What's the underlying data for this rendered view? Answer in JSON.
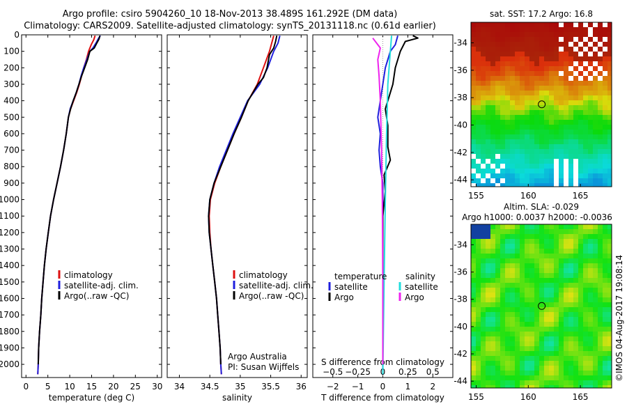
{
  "header": {
    "title_line1": "Argo profile: csiro 5904260_10 18-Nov-2013 38.489S 161.292E (DM data)",
    "title_line2": "Climatology: CARS2009. Satellite-adjusted climatology: synTS_20131118.nc (0.61d earlier)"
  },
  "footer": {
    "credit_line1": "Argo Australia",
    "credit_line2": "PI: Susan Wijffels",
    "stamp": "©IMOS 04-Aug-2017 19:08:14"
  },
  "colors": {
    "climatology": "#dd1010",
    "satellite": "#1f1fdd",
    "argo": "#000000",
    "satellite_salinity": "#22dddd",
    "argo_salinity": "#ee22ee"
  },
  "chart_data": [
    {
      "id": "temperature",
      "type": "line",
      "xlabel": "temperature (deg C)",
      "ylabel": "",
      "xlim": [
        -1,
        31
      ],
      "ylim": [
        2080,
        0
      ],
      "xticks": [
        0,
        5,
        10,
        15,
        20,
        25,
        30
      ],
      "yticks": [
        0,
        100,
        200,
        300,
        400,
        500,
        600,
        700,
        800,
        900,
        1000,
        1100,
        1200,
        1300,
        1400,
        1500,
        1600,
        1700,
        1800,
        1900,
        2000
      ],
      "legend": {
        "position": "bottom-right",
        "entries": [
          "climatology",
          "satellite-adj. clim.",
          "Argo(..raw -QC)"
        ]
      },
      "series": [
        {
          "name": "climatology",
          "color": "#dd1010",
          "points": [
            [
              15.8,
              5
            ],
            [
              15.5,
              30
            ],
            [
              14.9,
              60
            ],
            [
              14.3,
              100
            ],
            [
              13.8,
              150
            ],
            [
              13.2,
              200
            ],
            [
              12.7,
              250
            ],
            [
              12.2,
              300
            ],
            [
              11.6,
              350
            ],
            [
              10.9,
              400
            ],
            [
              10.2,
              450
            ],
            [
              9.7,
              500
            ],
            [
              9.2,
              600
            ],
            [
              8.6,
              700
            ],
            [
              7.9,
              800
            ],
            [
              7.1,
              900
            ],
            [
              6.3,
              1000
            ],
            [
              5.6,
              1100
            ],
            [
              5.1,
              1200
            ],
            [
              4.6,
              1300
            ],
            [
              4.2,
              1400
            ],
            [
              3.9,
              1500
            ],
            [
              3.6,
              1600
            ],
            [
              3.4,
              1700
            ],
            [
              3.1,
              1800
            ],
            [
              2.9,
              1900
            ],
            [
              2.8,
              2000
            ],
            [
              2.7,
              2060
            ]
          ]
        },
        {
          "name": "satellite-adj. clim.",
          "color": "#1f1fdd",
          "points": [
            [
              17.0,
              5
            ],
            [
              16.6,
              20
            ],
            [
              16.0,
              50
            ],
            [
              15.3,
              80
            ],
            [
              14.6,
              100
            ],
            [
              13.9,
              150
            ],
            [
              13.2,
              200
            ],
            [
              12.6,
              250
            ],
            [
              12.1,
              300
            ],
            [
              11.5,
              350
            ],
            [
              10.8,
              400
            ],
            [
              10.1,
              450
            ],
            [
              9.7,
              500
            ],
            [
              9.2,
              600
            ],
            [
              8.6,
              700
            ],
            [
              7.9,
              800
            ],
            [
              7.1,
              900
            ],
            [
              6.3,
              1000
            ],
            [
              5.6,
              1100
            ],
            [
              5.1,
              1200
            ],
            [
              4.6,
              1300
            ],
            [
              4.2,
              1400
            ],
            [
              3.9,
              1500
            ],
            [
              3.6,
              1600
            ],
            [
              3.4,
              1700
            ],
            [
              3.1,
              1800
            ],
            [
              2.9,
              1900
            ],
            [
              2.8,
              2000
            ],
            [
              2.7,
              2060
            ]
          ]
        },
        {
          "name": "Argo(..raw -QC)",
          "color": "#000000",
          "points": [
            [
              16.9,
              5
            ],
            [
              16.7,
              25
            ],
            [
              16.2,
              50
            ],
            [
              15.6,
              80
            ],
            [
              14.6,
              100
            ],
            [
              14.1,
              150
            ],
            [
              13.4,
              200
            ],
            [
              12.7,
              250
            ],
            [
              12.1,
              300
            ],
            [
              11.5,
              350
            ],
            [
              10.8,
              400
            ],
            [
              10.2,
              450
            ],
            [
              9.7,
              500
            ],
            [
              9.2,
              600
            ],
            [
              8.6,
              700
            ],
            [
              7.9,
              800
            ],
            [
              7.1,
              900
            ],
            [
              6.3,
              1000
            ],
            [
              5.6,
              1100
            ],
            [
              5.1,
              1200
            ],
            [
              4.6,
              1300
            ],
            [
              4.2,
              1400
            ],
            [
              3.9,
              1500
            ],
            [
              3.6,
              1600
            ],
            [
              3.4,
              1700
            ],
            [
              3.1,
              1800
            ],
            [
              2.9,
              1900
            ],
            [
              2.8,
              2000
            ]
          ]
        }
      ]
    },
    {
      "id": "salinity",
      "type": "line",
      "xlabel": "salinity",
      "ylabel": "",
      "xlim": [
        33.8,
        36.1
      ],
      "ylim": [
        2080,
        0
      ],
      "xticks": [
        34,
        34.5,
        35,
        35.5,
        36
      ],
      "xticklabels": [
        "34",
        "34.5",
        "35",
        "35.5",
        "36"
      ],
      "legend": {
        "position": "bottom-right",
        "entries": [
          "climatology",
          "satellite-adj. clim.",
          "Argo(..raw -QC)"
        ]
      },
      "series": [
        {
          "name": "climatology",
          "color": "#dd1010",
          "points": [
            [
              35.55,
              5
            ],
            [
              35.48,
              100
            ],
            [
              35.38,
              200
            ],
            [
              35.28,
              300
            ],
            [
              35.13,
              400
            ],
            [
              35.02,
              500
            ],
            [
              34.9,
              600
            ],
            [
              34.79,
              700
            ],
            [
              34.68,
              800
            ],
            [
              34.58,
              900
            ],
            [
              34.51,
              1000
            ],
            [
              34.49,
              1100
            ],
            [
              34.5,
              1200
            ],
            [
              34.52,
              1300
            ],
            [
              34.55,
              1400
            ],
            [
              34.58,
              1500
            ],
            [
              34.61,
              1600
            ],
            [
              34.63,
              1700
            ],
            [
              34.65,
              1800
            ],
            [
              34.67,
              1900
            ],
            [
              34.68,
              2000
            ],
            [
              34.69,
              2060
            ]
          ]
        },
        {
          "name": "satellite-adj. clim.",
          "color": "#1f1fdd",
          "points": [
            [
              35.65,
              5
            ],
            [
              35.62,
              50
            ],
            [
              35.55,
              100
            ],
            [
              35.45,
              200
            ],
            [
              35.32,
              300
            ],
            [
              35.12,
              400
            ],
            [
              35.0,
              500
            ],
            [
              34.88,
              600
            ],
            [
              34.77,
              700
            ],
            [
              34.66,
              800
            ],
            [
              34.57,
              900
            ],
            [
              34.5,
              1000
            ],
            [
              34.48,
              1100
            ],
            [
              34.49,
              1200
            ],
            [
              34.52,
              1300
            ],
            [
              34.55,
              1400
            ],
            [
              34.58,
              1500
            ],
            [
              34.61,
              1600
            ],
            [
              34.63,
              1700
            ],
            [
              34.65,
              1800
            ],
            [
              34.67,
              1900
            ],
            [
              34.68,
              2000
            ],
            [
              34.69,
              2060
            ]
          ]
        },
        {
          "name": "Argo(..raw -QC)",
          "color": "#000000",
          "points": [
            [
              35.6,
              5
            ],
            [
              35.58,
              40
            ],
            [
              35.55,
              80
            ],
            [
              35.48,
              120
            ],
            [
              35.44,
              200
            ],
            [
              35.38,
              260
            ],
            [
              35.29,
              300
            ],
            [
              35.13,
              400
            ],
            [
              35.02,
              500
            ],
            [
              34.9,
              600
            ],
            [
              34.79,
              700
            ],
            [
              34.68,
              800
            ],
            [
              34.57,
              900
            ],
            [
              34.5,
              1000
            ],
            [
              34.48,
              1100
            ],
            [
              34.49,
              1200
            ],
            [
              34.52,
              1300
            ],
            [
              34.55,
              1400
            ],
            [
              34.58,
              1500
            ],
            [
              34.61,
              1600
            ],
            [
              34.63,
              1700
            ],
            [
              34.65,
              1800
            ],
            [
              34.67,
              1900
            ],
            [
              34.68,
              2000
            ]
          ]
        }
      ]
    },
    {
      "id": "differences",
      "type": "line",
      "xlabel": "T difference from climatology",
      "xlabel_top": "S difference from climatology",
      "xlim": [
        -2.8,
        2.8
      ],
      "ylim": [
        2080,
        0
      ],
      "xticks": [
        -2,
        -1,
        0,
        1,
        2
      ],
      "xticklabels": [
        "−2",
        "−1",
        "0",
        "1",
        "2"
      ],
      "salinity_ticklabels": [
        "−0.5",
        "−0.25",
        "0",
        "0.25",
        "0.5"
      ],
      "legend": {
        "position": "bottom",
        "groups": [
          {
            "heading": "temperature",
            "entries": [
              "satellite",
              "Argo"
            ]
          },
          {
            "heading": "salinity",
            "entries": [
              "satellite",
              "Argo"
            ]
          }
        ]
      },
      "series": [
        {
          "name": "satellite",
          "group": "temperature",
          "color": "#1f1fdd",
          "points": [
            [
              0.6,
              5
            ],
            [
              0.5,
              60
            ],
            [
              0.3,
              100
            ],
            [
              0.1,
              200
            ],
            [
              0.0,
              300
            ],
            [
              -0.1,
              400
            ],
            [
              -0.2,
              500
            ],
            [
              -0.1,
              600
            ],
            [
              -0.15,
              700
            ],
            [
              -0.1,
              800
            ],
            [
              0.0,
              900
            ],
            [
              0.0,
              1000
            ],
            [
              0.0,
              1500
            ],
            [
              0.0,
              2060
            ]
          ]
        },
        {
          "name": "Argo",
          "group": "temperature",
          "color": "#000000",
          "points": [
            [
              1.2,
              5
            ],
            [
              1.4,
              20
            ],
            [
              0.9,
              40
            ],
            [
              0.7,
              100
            ],
            [
              0.6,
              150
            ],
            [
              0.5,
              200
            ],
            [
              0.4,
              300
            ],
            [
              0.1,
              450
            ],
            [
              0.2,
              550
            ],
            [
              0.2,
              680
            ],
            [
              0.3,
              760
            ],
            [
              0.05,
              850
            ],
            [
              0.1,
              950
            ],
            [
              0.0,
              1100
            ],
            [
              0.0,
              1500
            ],
            [
              0.0,
              2000
            ]
          ]
        },
        {
          "name": "satellite",
          "group": "salinity",
          "color": "#22dddd",
          "points": [
            [
              0.35,
              5
            ],
            [
              0.3,
              100
            ],
            [
              0.2,
              300
            ],
            [
              0.15,
              600
            ],
            [
              0.1,
              1000
            ],
            [
              0.05,
              1500
            ],
            [
              0.0,
              2060
            ]
          ]
        },
        {
          "name": "Argo",
          "group": "salinity",
          "color": "#ee22ee",
          "points": [
            [
              -0.4,
              20
            ],
            [
              -0.1,
              80
            ],
            [
              -0.2,
              150
            ],
            [
              -0.15,
              250
            ],
            [
              -0.1,
              400
            ],
            [
              -0.05,
              700
            ],
            [
              -0.02,
              1000
            ],
            [
              0.0,
              1500
            ],
            [
              0.0,
              2000
            ]
          ]
        }
      ]
    },
    {
      "id": "sst-map",
      "type": "heatmap",
      "title": "sat. SST: 17.2 Argo: 16.8",
      "xlim": [
        154.5,
        168
      ],
      "ylim": [
        -44.5,
        -32.5
      ],
      "xticks": [
        155,
        160,
        165
      ],
      "yticks": [
        -34,
        -36,
        -38,
        -40,
        -42,
        -44
      ],
      "marker": {
        "lon": 161.292,
        "lat": -38.489
      }
    },
    {
      "id": "sla-map",
      "type": "heatmap",
      "title": "Altim. SLA: -0.029",
      "subtitle": "Argo h1000: 0.0037 h2000: -0.0036",
      "xlim": [
        154.5,
        168
      ],
      "ylim": [
        -44.5,
        -32.5
      ],
      "xticks": [
        155,
        160,
        165
      ],
      "yticks": [
        -34,
        -36,
        -38,
        -40,
        -42,
        -44
      ],
      "marker": {
        "lon": 161.292,
        "lat": -38.489
      }
    }
  ]
}
